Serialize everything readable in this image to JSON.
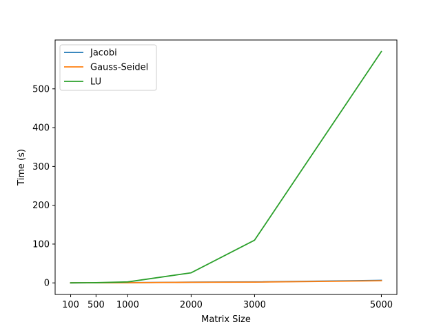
{
  "chart_data": {
    "type": "line",
    "xlabel": "Matrix Size",
    "ylabel": "Time (s)",
    "x": [
      100,
      500,
      1000,
      2000,
      3000,
      5000
    ],
    "xticks": [
      100,
      500,
      1000,
      2000,
      3000,
      5000
    ],
    "yticks": [
      0,
      100,
      200,
      300,
      400,
      500
    ],
    "xlim": [
      -145,
      5245
    ],
    "ylim": [
      -29.8,
      625.8
    ],
    "grid": false,
    "legend_position": "upper left",
    "series": [
      {
        "name": "Jacobi",
        "color": "#1f77b4",
        "values": [
          0.1,
          0.2,
          0.5,
          1.8,
          2.5,
          6.5
        ]
      },
      {
        "name": "Gauss-Seidel",
        "color": "#ff7f0e",
        "values": [
          0.1,
          0.2,
          0.4,
          1.5,
          2.0,
          5.5
        ]
      },
      {
        "name": "LU",
        "color": "#2ca02c",
        "values": [
          0.05,
          0.5,
          2.5,
          26.0,
          110.0,
          596.0
        ]
      }
    ]
  }
}
